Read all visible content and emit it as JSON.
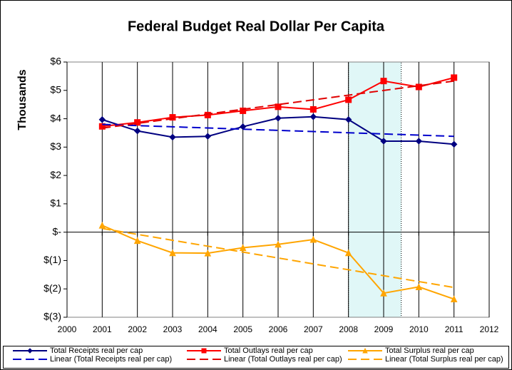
{
  "chart_data": {
    "type": "line",
    "title": "Federal Budget Real Dollar Per Capita",
    "ylabel": "Thousands",
    "x": [
      2001,
      2002,
      2003,
      2004,
      2005,
      2006,
      2007,
      2008,
      2009,
      2010,
      2011
    ],
    "xlim": [
      2000,
      2012
    ],
    "xticks": [
      2000,
      2001,
      2002,
      2003,
      2004,
      2005,
      2006,
      2007,
      2008,
      2009,
      2010,
      2011,
      2012
    ],
    "ylim": [
      -3,
      6
    ],
    "yticks": [
      {
        "value": 6,
        "label": "$6"
      },
      {
        "value": 5,
        "label": "$5"
      },
      {
        "value": 4,
        "label": "$4"
      },
      {
        "value": 3,
        "label": "$3"
      },
      {
        "value": 2,
        "label": "$2"
      },
      {
        "value": 1,
        "label": "$1"
      },
      {
        "value": 0,
        "label": "$-"
      },
      {
        "value": -1,
        "label": "$(1)"
      },
      {
        "value": -2,
        "label": "$(2)"
      },
      {
        "value": -3,
        "label": "$(3)"
      }
    ],
    "grid": true,
    "highlight_xrange": [
      2008,
      2009.5
    ],
    "legend": "bottom",
    "series": [
      {
        "name": "Total Receipts real per cap",
        "color": "#000080",
        "marker": "diamond",
        "values": [
          3.97,
          3.57,
          3.35,
          3.38,
          3.72,
          4.02,
          4.07,
          3.97,
          3.21,
          3.21,
          3.1
        ]
      },
      {
        "name": "Total Outlays real per cap",
        "color": "#ff0000",
        "marker": "square",
        "values": [
          3.73,
          3.87,
          4.05,
          4.13,
          4.28,
          4.42,
          4.33,
          4.67,
          5.33,
          5.12,
          5.45
        ]
      },
      {
        "name": "Total Surplus real per cap",
        "color": "#ffa500",
        "marker": "triangle",
        "values": [
          0.24,
          -0.3,
          -0.73,
          -0.74,
          -0.55,
          -0.43,
          -0.26,
          -0.73,
          -2.15,
          -1.93,
          -2.36
        ]
      },
      {
        "name": "Linear (Total Receipts real per cap)",
        "color": "#0000cc",
        "dashed": true,
        "x": [
          2001,
          2011
        ],
        "values": [
          3.8,
          3.38
        ]
      },
      {
        "name": "Linear (Total Outlays real per cap)",
        "color": "#e00000",
        "dashed": true,
        "x": [
          2001,
          2011
        ],
        "values": [
          3.67,
          5.33
        ]
      },
      {
        "name": "Linear (Total Surplus real per cap)",
        "color": "#ffa500",
        "dashed": true,
        "x": [
          2001,
          2011
        ],
        "values": [
          0.13,
          -1.95
        ]
      }
    ]
  }
}
